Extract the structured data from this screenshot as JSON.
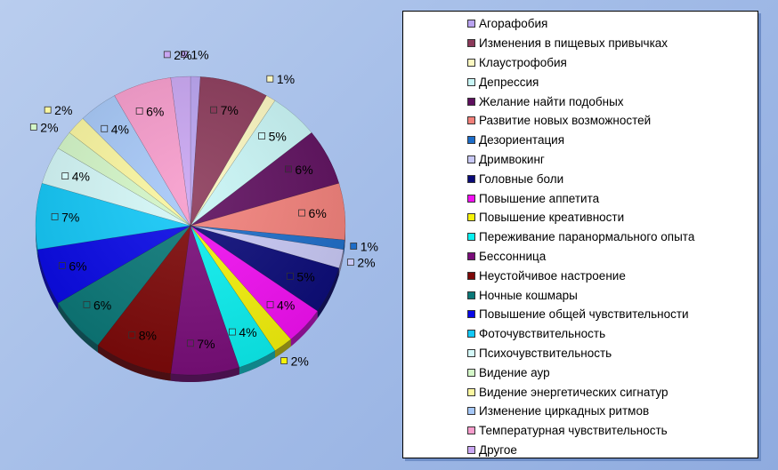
{
  "chart_data": {
    "type": "pie",
    "title": "",
    "legend_position": "right",
    "slices": [
      {
        "name": "Агорафобия",
        "value": 1,
        "label": "1%",
        "color": "#b9a3f0"
      },
      {
        "name": "Изменения в пищевых привычках",
        "value": 7,
        "label": "7%",
        "color": "#8b3a5a"
      },
      {
        "name": "Клаустрофобия",
        "value": 1,
        "label": "1%",
        "color": "#fbf7c0"
      },
      {
        "name": "Депрессия",
        "value": 5,
        "label": "5%",
        "color": "#c8f5f5"
      },
      {
        "name": "Желание найти подобных",
        "value": 6,
        "label": "6%",
        "color": "#5e0f5e"
      },
      {
        "name": "Развитие новых возможностей",
        "value": 6,
        "label": "6%",
        "color": "#f2807a"
      },
      {
        "name": "Дезориентация",
        "value": 1,
        "label": "1%",
        "color": "#1d6dc9"
      },
      {
        "name": "Дримвокинг",
        "value": 2,
        "label": "2%",
        "color": "#c8c8f5"
      },
      {
        "name": "Головные боли",
        "value": 5,
        "label": "5%",
        "color": "#0a0a78"
      },
      {
        "name": "Повышение аппетита",
        "value": 4,
        "label": "4%",
        "color": "#f20ef2"
      },
      {
        "name": "Повышение креативности",
        "value": 2,
        "label": "2%",
        "color": "#f5f20a"
      },
      {
        "name": "Переживание паранормального опыта",
        "value": 4,
        "label": "4%",
        "color": "#0af0f0"
      },
      {
        "name": "Бессонница",
        "value": 7,
        "label": "7%",
        "color": "#7a0d7a"
      },
      {
        "name": "Неустойчивое настроение",
        "value": 8,
        "label": "8%",
        "color": "#7d0808"
      },
      {
        "name": "Ночные кошмары",
        "value": 6,
        "label": "6%",
        "color": "#0a7878"
      },
      {
        "name": "Повышение общей чувствительности",
        "value": 6,
        "label": "6%",
        "color": "#0808e6"
      },
      {
        "name": "Фоточувствительность",
        "value": 7,
        "label": "7%",
        "color": "#12c8f8"
      },
      {
        "name": "Психочувствительность",
        "value": 4,
        "label": "4%",
        "color": "#d4f8f8"
      },
      {
        "name": "Видение аур",
        "value": 2,
        "label": "2%",
        "color": "#d4f7c8"
      },
      {
        "name": "Видение энергетических сигнатур",
        "value": 2,
        "label": "2%",
        "color": "#fbf7a0"
      },
      {
        "name": "Изменение циркадных ритмов",
        "value": 4,
        "label": "4%",
        "color": "#a6c8f8"
      },
      {
        "name": "Температурная чувствительность",
        "value": 6,
        "label": "6%",
        "color": "#f79ccc"
      },
      {
        "name": "Другое",
        "value": 2,
        "label": "2%",
        "color": "#c9a6f2"
      }
    ]
  }
}
